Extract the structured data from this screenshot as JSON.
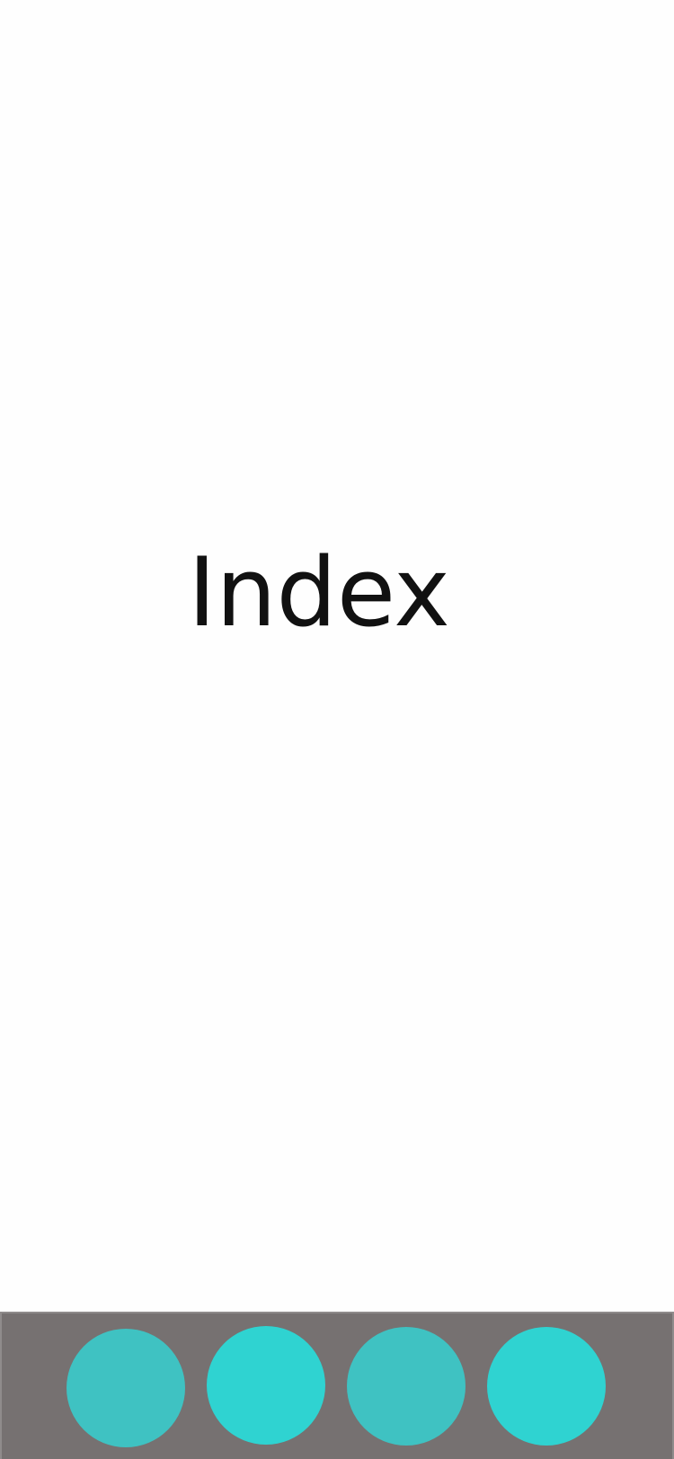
{
  "main": {
    "title": "Index"
  },
  "tab_bar": {
    "background_color": "#767171",
    "tabs": [
      {
        "name": "tab-1",
        "color": "#3fc2c2"
      },
      {
        "name": "tab-2",
        "color": "#2fd3d1"
      },
      {
        "name": "tab-3",
        "color": "#3fc2c2"
      },
      {
        "name": "tab-4",
        "color": "#2fd3d1"
      }
    ]
  }
}
